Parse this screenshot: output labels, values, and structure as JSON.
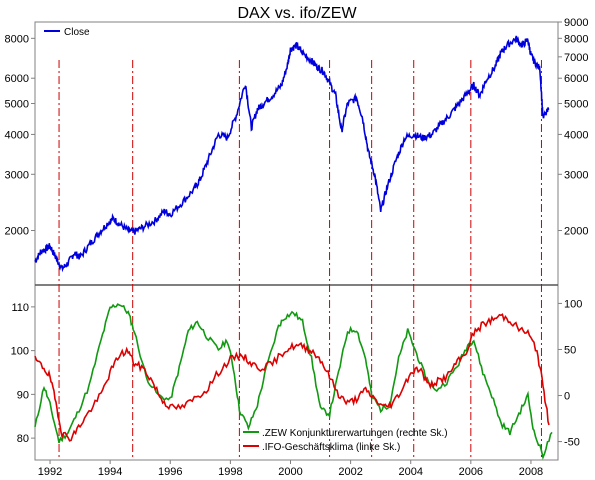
{
  "chart_data": {
    "type": "line",
    "title": "DAX vs. ifo/ZEW",
    "x_range": [
      1991.5,
      2008.9
    ],
    "x_ticks": [
      1992,
      1994,
      1996,
      1998,
      2000,
      2002,
      2004,
      2006,
      2008
    ],
    "x_tick_labels": [
      "1992",
      "1994",
      "1996",
      "1998",
      "2000",
      "2002",
      "2004",
      "2006",
      "2008"
    ],
    "grid": false,
    "top_panel": {
      "scale": "log",
      "left_axis": {
        "range": [
          1350,
          9000
        ],
        "ticks": [
          2000,
          3000,
          4000,
          5000,
          6000,
          8000
        ],
        "tick_labels": [
          "2000",
          "3000",
          "4000",
          "5000",
          "6000",
          "8000"
        ]
      },
      "right_axis": {
        "range": [
          1350,
          9000
        ],
        "ticks": [
          2000,
          3000,
          4000,
          5000,
          6000,
          7000,
          8000,
          9000
        ],
        "tick_labels": [
          "2000",
          "3000",
          "4000",
          "5000",
          "6000",
          "7000",
          "8000",
          "9000"
        ]
      },
      "legend": {
        "position": "top-left",
        "entries": [
          "Close"
        ]
      },
      "series": [
        {
          "name": "Close",
          "color": "#0000dd",
          "x": [
            1991.5,
            1991.7,
            1991.9,
            1992.0,
            1992.2,
            1992.4,
            1992.6,
            1992.8,
            1993.0,
            1993.3,
            1993.6,
            1993.9,
            1994.1,
            1994.3,
            1994.6,
            1994.8,
            1995.1,
            1995.5,
            1995.8,
            1996.0,
            1996.4,
            1996.8,
            1997.0,
            1997.3,
            1997.6,
            1997.9,
            1998.2,
            1998.5,
            1998.7,
            1998.9,
            1999.1,
            1999.4,
            1999.7,
            1999.9,
            2000.0,
            2000.2,
            2000.4,
            2000.7,
            2000.9,
            2001.1,
            2001.3,
            2001.5,
            2001.7,
            2001.9,
            2002.2,
            2002.4,
            2002.6,
            2002.8,
            2003.0,
            2003.2,
            2003.5,
            2003.8,
            2004.1,
            2004.4,
            2004.7,
            2005.0,
            2005.3,
            2005.6,
            2005.9,
            2006.1,
            2006.3,
            2006.5,
            2006.8,
            2007.0,
            2007.2,
            2007.5,
            2007.7,
            2007.9,
            2008.0,
            2008.1,
            2008.3,
            2008.4,
            2008.6
          ],
          "y": [
            1600,
            1720,
            1760,
            1790,
            1640,
            1520,
            1580,
            1700,
            1650,
            1800,
            1950,
            2100,
            2180,
            2100,
            2000,
            1980,
            2050,
            2150,
            2300,
            2250,
            2450,
            2700,
            2900,
            3400,
            4000,
            3900,
            4600,
            5800,
            4200,
            4800,
            5000,
            5300,
            5700,
            6600,
            7400,
            7600,
            7200,
            6800,
            6500,
            6300,
            5800,
            5300,
            4100,
            5000,
            5200,
            4500,
            3500,
            3000,
            2300,
            2700,
            3300,
            3900,
            4000,
            3900,
            4000,
            4300,
            4600,
            5000,
            5400,
            5700,
            5300,
            5900,
            6500,
            7200,
            7600,
            8000,
            7600,
            7900,
            7100,
            6800,
            6400,
            4500,
            4800
          ]
        }
      ]
    },
    "bottom_panel": {
      "left_axis": {
        "range": [
          75,
          115
        ],
        "ticks": [
          80,
          90,
          100,
          110
        ],
        "tick_labels": [
          "80",
          "90",
          "100",
          "110"
        ]
      },
      "right_axis": {
        "range": [
          -70,
          120
        ],
        "ticks": [
          -50,
          0,
          50,
          100
        ],
        "tick_labels": [
          "-50",
          "0",
          "50",
          "100"
        ]
      },
      "legend": {
        "position": "bottom-right",
        "entries": [
          ".ZEW Konjunkturerwartungen (rechte Sk.)",
          ".IFO-Geschäftsklima (linke Sk.)"
        ]
      },
      "series": [
        {
          "name": ".ZEW Konjunkturerwartungen (rechte Sk.)",
          "axis": "right",
          "color": "#119911",
          "x": [
            1991.5,
            1991.8,
            1992.0,
            1992.3,
            1992.6,
            1992.9,
            1993.3,
            1993.7,
            1994.0,
            1994.3,
            1994.6,
            1994.8,
            1995.2,
            1995.6,
            1996.0,
            1996.3,
            1996.6,
            1996.9,
            1997.2,
            1997.6,
            1997.9,
            1998.1,
            1998.3,
            1998.6,
            1998.9,
            1999.2,
            1999.6,
            1999.8,
            2000.1,
            2000.4,
            2000.7,
            2001.0,
            2001.3,
            2001.6,
            2001.9,
            2002.2,
            2002.5,
            2002.7,
            2003.0,
            2003.3,
            2003.6,
            2003.9,
            2004.2,
            2004.5,
            2004.8,
            2005.2,
            2005.6,
            2005.9,
            2006.1,
            2006.4,
            2006.7,
            2007.0,
            2007.3,
            2007.6,
            2007.9,
            2008.1,
            2008.4,
            2008.7
          ],
          "y": [
            -35,
            10,
            -10,
            -50,
            -40,
            -20,
            10,
            60,
            95,
            100,
            90,
            70,
            20,
            0,
            -5,
            30,
            70,
            80,
            65,
            50,
            60,
            30,
            -15,
            -35,
            -10,
            30,
            75,
            85,
            90,
            80,
            40,
            -15,
            -20,
            25,
            70,
            72,
            40,
            0,
            -15,
            -10,
            40,
            70,
            45,
            20,
            5,
            15,
            35,
            55,
            60,
            25,
            0,
            -30,
            -40,
            -20,
            0,
            -40,
            -65,
            -40
          ]
        },
        {
          "name": ".IFO-Geschäftsklima (linke Sk.)",
          "axis": "left",
          "color": "#dd0000",
          "x": [
            1991.5,
            1991.8,
            1992.0,
            1992.2,
            1992.4,
            1992.7,
            1993.0,
            1993.3,
            1993.7,
            1994.0,
            1994.3,
            1994.6,
            1994.8,
            1995.1,
            1995.4,
            1995.7,
            1996.0,
            1996.4,
            1996.8,
            1997.2,
            1997.6,
            1998.0,
            1998.4,
            1998.7,
            1999.0,
            1999.4,
            1999.8,
            2000.1,
            2000.4,
            2000.7,
            2001.0,
            2001.3,
            2001.6,
            2001.9,
            2002.2,
            2002.5,
            2002.8,
            2003.1,
            2003.4,
            2003.7,
            2004.0,
            2004.3,
            2004.6,
            2004.9,
            2005.2,
            2005.5,
            2005.8,
            2006.1,
            2006.4,
            2006.7,
            2007.0,
            2007.3,
            2007.6,
            2007.9,
            2008.2,
            2008.4,
            2008.6
          ],
          "y": [
            98,
            96,
            94,
            88,
            81,
            80,
            83,
            86,
            90,
            95,
            99,
            100,
            97,
            96,
            93,
            89,
            87,
            87,
            89,
            91,
            95,
            98,
            99,
            97,
            96,
            97,
            100,
            101,
            101,
            100,
            98,
            94,
            90,
            88,
            89,
            91,
            89,
            87,
            88,
            91,
            95,
            96,
            92,
            93,
            94,
            97,
            99,
            104,
            106,
            107,
            108,
            107,
            105,
            104,
            100,
            92,
            83
          ]
        }
      ]
    },
    "annotations": {
      "type": "vertical-dash-dot-lines",
      "color": "#cc0000",
      "x": [
        1992.3,
        1994.75,
        1998.3,
        2001.3,
        2002.7,
        2004.1,
        2006.0,
        2008.35
      ]
    }
  }
}
